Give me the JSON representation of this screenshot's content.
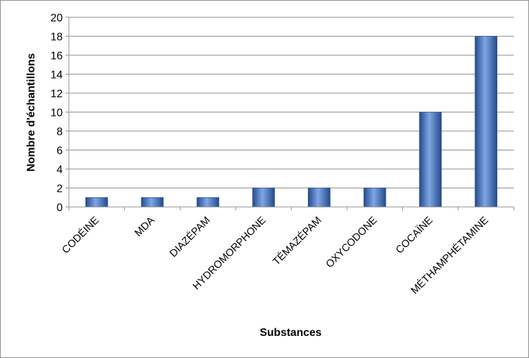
{
  "chart_data": {
    "type": "bar",
    "categories": [
      "CODÉINE",
      "MDA",
      "DIAZÉPAM",
      "HYDROMORPHONE",
      "TÉMAZÉPAM",
      "OXYCODONE",
      "COCAÏNE",
      "MÉTHAMPHÉTAMINE"
    ],
    "values": [
      1,
      1,
      1,
      2,
      2,
      2,
      10,
      18
    ],
    "title": "",
    "xlabel": "Substances",
    "ylabel": "Nombre d'échantillons",
    "ylim": [
      0,
      20
    ],
    "yticks": [
      0,
      2,
      4,
      6,
      8,
      10,
      12,
      14,
      16,
      18,
      20
    ],
    "grid": "horizontal",
    "legend": "none",
    "bar_color": "#3f6fc0",
    "bar_color_dark": "#244a8c",
    "bar_color_light": "#7fa6e4"
  }
}
